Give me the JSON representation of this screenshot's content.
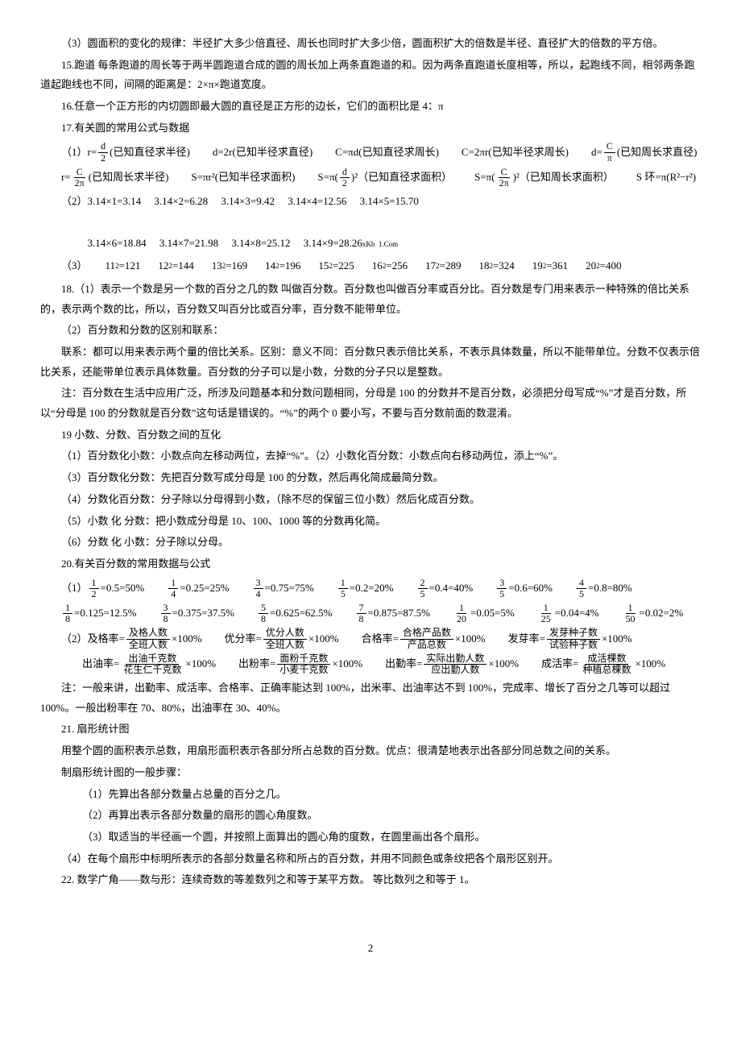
{
  "p3": "（3）圆面积的变化的规律：半径扩大多少倍直径、周长也同时扩大多少倍，圆面积扩大的倍数是半径、直径扩大的倍数的平方倍。",
  "p15": "15.跑道 每条跑道的周长等于两半圆跑道合成的圆的周长加上两条直跑道的和。因为两条直跑道长度相等，所以，起跑线不同，相邻两条跑道起跑线也不同，间隔的距离是：2×π×跑道宽度。",
  "p16": "16.任意一个正方形的内切圆即最大圆的直径是正方形的边长，它们的面积比是 4：π",
  "p17": "17.有关圆的常用公式与数据",
  "f17_1": {
    "prefix": "（1）r=",
    "num": "d",
    "den": "2",
    "items": [
      "(已知直径求半径)",
      "d=2r(已知半径求直径)",
      "C=πd(已知直径求周长)",
      "C=2πr(已知半径求周长)"
    ],
    "last_prefix": "d=",
    "last_num": "C",
    "last_den": "π",
    "last_suffix": "(已知周长求直径)"
  },
  "f17_1b": {
    "i1_prefix": "r=",
    "i1_num": "C",
    "i1_den": "2π",
    "i1_suffix": "(已知周长求半径)",
    "i2": "S=πr²(已知半径求面积)",
    "i3_prefix": "S=π(",
    "i3_num": "d",
    "i3_den": "2",
    "i3_suffix": ")²（已知直径求面积）",
    "i4_prefix": "S=π(",
    "i4_num": "C",
    "i4_den": "2π",
    "i4_suffix": ")²（已知周长求面积）",
    "i5": "S 环=π(R²−r²)"
  },
  "f17_2": "（2）3.14×1=3.14     3.14×2=6.28     3.14×3=9.42     3.14×4=12.56     3.14×5=15.70",
  "f17_2b": "3.14×6=18.84     3.14×7=21.98     3.14×8=25.12     3.14×9=28.26",
  "f17_2b_note": "xKb  1.Com",
  "f17_3": {
    "label": "（3）",
    "items": [
      {
        "base": "11",
        "exp": "2",
        "eq": "=121"
      },
      {
        "base": "12",
        "exp": "2",
        "eq": "=144"
      },
      {
        "base": "13",
        "exp": "2",
        "eq": "=169"
      },
      {
        "base": "14",
        "exp": "2",
        "eq": "=196"
      },
      {
        "base": "15",
        "exp": "2",
        "eq": "=225"
      },
      {
        "base": "16",
        "exp": "2",
        "eq": "=256"
      },
      {
        "base": "17",
        "exp": "2",
        "eq": "=289"
      },
      {
        "base": "18",
        "exp": "2",
        "eq": "=324"
      },
      {
        "base": "19",
        "exp": "2",
        "eq": "=361"
      },
      {
        "base": "20",
        "exp": "2",
        "eq": "=400"
      }
    ]
  },
  "p18a": "18.（1）表示一个数是另一个数的百分之几的数 叫做百分数。百分数也叫做百分率或百分比。百分数是专门用来表示一种特殊的倍比关系的，表示两个数的比，所以，百分数又叫百分比或百分率，百分数不能带单位。",
  "p18b": "（2）百分数和分数的区别和联系：",
  "p18c": "联系：都可以用来表示两个量的倍比关系。区别：意义不同：百分数只表示倍比关系，不表示具体数量，所以不能带单位。分数不仅表示倍比关系，还能带单位表示具体数量。百分数的分子可以是小数，分数的分子只以是整数。",
  "p18d": "注：百分数在生活中应用广泛，所涉及问题基本和分数问题相同，分母是 100 的分数并不是百分数，必须把分母写成“%”才是百分数，所以“分母是 100 的分数就是百分数”这句话是错误的。“%”的两个 0 要小写，不要与百分数前面的数混淆。",
  "p19": "19 小数、分数、百分数之间的互化",
  "p19a": "（1）百分数化小数：小数点向左移动两位，去掉“%”。（2）小数化百分数：小数点向右移动两位，添上“%”。",
  "p19b": "（3）百分数化分数：先把百分数写成分母是 100 的分数，然后再化简成最简分数。",
  "p19c": "（4）分数化百分数：分子除以分母得到小数，（除不尽的保留三位小数）然后化成百分数。",
  "p19d": "（5）小数 化 分数：把小数成分母是 10、100、1000 等的分数再化简。",
  "p19e": "（6）分数 化 小数：分子除以分母。",
  "p20": "20.有关百分数的常用数据与公式",
  "f20_1": [
    {
      "num": "1",
      "den": "2",
      "eq": "=0.5=50%"
    },
    {
      "num": "1",
      "den": "4",
      "eq": "=0.25=25%"
    },
    {
      "num": "3",
      "den": "4",
      "eq": "=0.75=75%"
    },
    {
      "num": "1",
      "den": "5",
      "eq": "=0.2=20%"
    },
    {
      "num": "2",
      "den": "5",
      "eq": "=0.4=40%"
    },
    {
      "num": "3",
      "den": "5",
      "eq": "=0.6=60%"
    },
    {
      "num": "4",
      "den": "5",
      "eq": "=0.8=80%"
    }
  ],
  "f20_1b": [
    {
      "num": "1",
      "den": "8",
      "eq": "=0.125=12.5%"
    },
    {
      "num": "3",
      "den": "8",
      "eq": "=0.375=37.5%"
    },
    {
      "num": "5",
      "den": "8",
      "eq": "=0.625=62.5%"
    },
    {
      "num": "7",
      "den": "8",
      "eq": "=0.875=87.5%"
    },
    {
      "num": "1",
      "den": "20",
      "eq": "=0.05=5%"
    },
    {
      "num": "1",
      "den": "25",
      "eq": "=0.04=4%"
    },
    {
      "num": "1",
      "den": "50",
      "eq": "=0.02=2%"
    }
  ],
  "f20_2": [
    {
      "label": "（2）及格率=",
      "num": "及格人数",
      "den": "全班人数",
      "suf": "×100%"
    },
    {
      "label": "优分率=",
      "num": "优分人数",
      "den": "全班人数",
      "suf": "×100%"
    },
    {
      "label": "合格率=",
      "num": "合格产品数",
      "den": "产品总数",
      "suf": "×100%"
    },
    {
      "label": "发芽率=",
      "num": "发芽种子数",
      "den": "试验种子数",
      "suf": "×100%"
    }
  ],
  "f20_2b": [
    {
      "label": "出油率=",
      "num": "出油千克数",
      "den": "花生仁千克数",
      "suf": "×100%"
    },
    {
      "label": "出粉率=",
      "num": "面粉千克数",
      "den": "小麦千克数",
      "suf": "×100%"
    },
    {
      "label": "出勤率=",
      "num": "实际出勤人数",
      "den": "应出勤人数",
      "suf": "×100%"
    },
    {
      "label": "成活率=",
      "num": "成活棵数",
      "den": "种植总棵数",
      "suf": "×100%"
    }
  ],
  "p20note": "注：一般来讲，出勤率、成活率、合格率、正确率能达到 100%，出米率、出油率达不到 100%，完成率、增长了百分之几等可以超过 100%。一般出粉率在 70、80%，出油率在 30、40%。",
  "p21": "21. 扇形统计图",
  "p21a": "用整个圆的面积表示总数，用扇形面积表示各部分所占总数的百分数。优点：很清楚地表示出各部分同总数之间的关系。",
  "p21b": "制扇形统计图的一般步骤：",
  "p21c": "（1）先算出各部分数量占总量的百分之几。",
  "p21d": "（2）再算出表示各部分数量的扇形的圆心角度数。",
  "p21e": "（3）取适当的半径画一个圆，并按照上面算出的圆心角的度数，在圆里画出各个扇形。",
  "p21f": "（4）在每个扇形中标明所表示的各部分数量名称和所占的百分数，并用不同颜色或条纹把各个扇形区别开。",
  "p22": "22. 数学广角——数与形：连续奇数的等差数列之和等于某平方数。   等比数列之和等于 1。",
  "pagenum": "2"
}
